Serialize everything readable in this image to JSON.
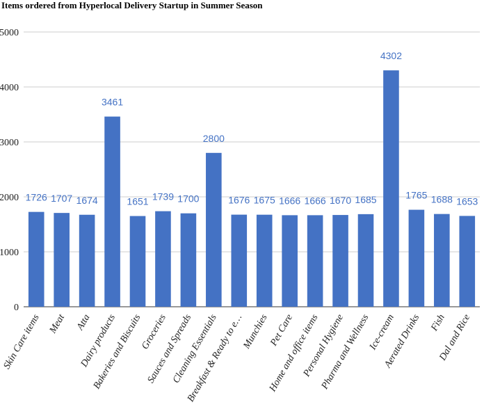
{
  "chart_data": {
    "type": "bar",
    "title": "Items ordered from Hyperlocal Delivery Startup in Summer Season",
    "xlabel": "",
    "ylabel": "",
    "ylim": [
      0,
      5000
    ],
    "yticks": [
      "0",
      "1000",
      "2000",
      "3000",
      "4000",
      "5000"
    ],
    "grid": true,
    "legend": "none",
    "bar_color": "#4472c4",
    "label_color": "#4472c4",
    "categories": [
      "Skin Care items",
      "Meat",
      "Atta",
      "Dairy products",
      "Bakeries and Biscuits",
      "Groceries",
      "Sauces and Spreads",
      "Cleaning Essentials",
      "Breakfast & Ready to e…",
      "Munchies",
      "Pet Care",
      "Home and office items",
      "Personal Hygiene",
      "Pharma and Wellness",
      "Ice-cream",
      "Aerated Drinks",
      "Fish",
      "Dal and Rice"
    ],
    "values": [
      1726,
      1707,
      1674,
      3461,
      1651,
      1739,
      1700,
      2800,
      1676,
      1675,
      1666,
      1666,
      1670,
      1685,
      4302,
      1765,
      1688,
      1653
    ]
  }
}
